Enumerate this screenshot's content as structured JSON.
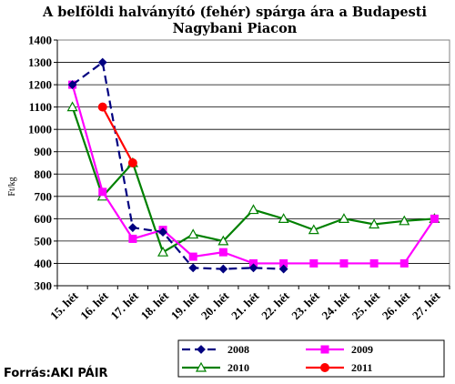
{
  "chart_data": {
    "type": "line",
    "title": [
      "A belföldi halványító (fehér) spárga ára a Budapesti",
      "Nagybani Piacon"
    ],
    "ylabel": "Ft/kg",
    "xlabel": "",
    "ylim": [
      300,
      1400
    ],
    "ytick_step": 100,
    "grid": true,
    "categories": [
      "15. hét",
      "16. hét",
      "17. hét",
      "18. hét",
      "19. hét",
      "20. hét",
      "21. hét",
      "22. hét",
      "23. hét",
      "24. hét",
      "25. hét",
      "26. hét",
      "27. hét"
    ],
    "legend_position": "bottom",
    "series": [
      {
        "name": "2008",
        "color": "#000080",
        "dash": true,
        "marker": "diamond",
        "values": [
          1200,
          1300,
          560,
          540,
          380,
          375,
          380,
          375,
          null,
          null,
          null,
          null,
          null
        ]
      },
      {
        "name": "2009",
        "color": "#FF00FF",
        "dash": false,
        "marker": "square",
        "values": [
          1200,
          720,
          510,
          550,
          430,
          450,
          400,
          400,
          400,
          400,
          400,
          400,
          600
        ]
      },
      {
        "name": "2010",
        "color": "#008000",
        "dash": false,
        "marker": "triangle",
        "values": [
          1100,
          700,
          850,
          450,
          530,
          500,
          640,
          600,
          550,
          600,
          575,
          590,
          600
        ]
      },
      {
        "name": "2011",
        "color": "#FF0000",
        "dash": false,
        "marker": "circle",
        "values": [
          null,
          1100,
          850,
          null,
          null,
          null,
          null,
          null,
          null,
          null,
          null,
          null,
          null
        ]
      }
    ]
  },
  "source": "Forrás:AKI PÁIR"
}
